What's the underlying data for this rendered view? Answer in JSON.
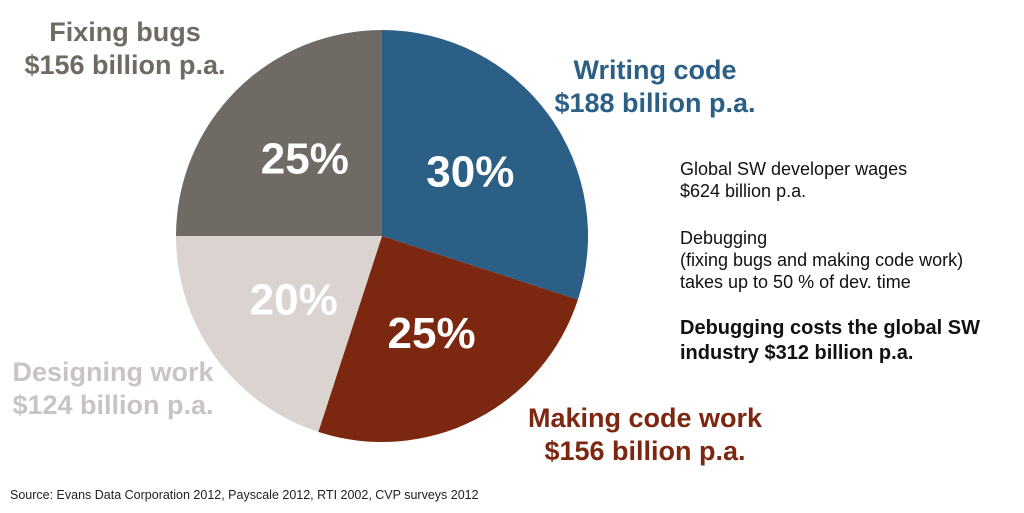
{
  "chart_data": {
    "type": "pie",
    "slices": [
      {
        "label": "Writing code",
        "amount": "$188 billion p.a.",
        "percent": 30,
        "percent_label": "30%",
        "color": "#2b5f86",
        "label_color": "#2b5f86"
      },
      {
        "label": "Making code work",
        "amount": "$156 billion p.a.",
        "percent": 25,
        "percent_label": "25%",
        "color": "#7c2710",
        "label_color": "#7c2710"
      },
      {
        "label": "Designing work",
        "amount": "$124 billion p.a.",
        "percent": 20,
        "percent_label": "20%",
        "color": "#dad3cf",
        "label_color": "#c9c4c2"
      },
      {
        "label": "Fixing bugs",
        "amount": "$156 billion p.a.",
        "percent": 25,
        "percent_label": "25%",
        "color": "#6f6a63",
        "label_color": "#6f6a63"
      }
    ]
  },
  "notes": {
    "wages": [
      "Global SW developer wages",
      "$624 billion p.a."
    ],
    "debugging": [
      "Debugging",
      "(fixing bugs and making code work)",
      "takes up to 50 % of dev. time"
    ],
    "conclusion": [
      "Debugging costs the global SW",
      "industry $312 billion p.a."
    ]
  },
  "source": "Source: Evans Data Corporation 2012, Payscale 2012, RTI 2002, CVP surveys 2012"
}
